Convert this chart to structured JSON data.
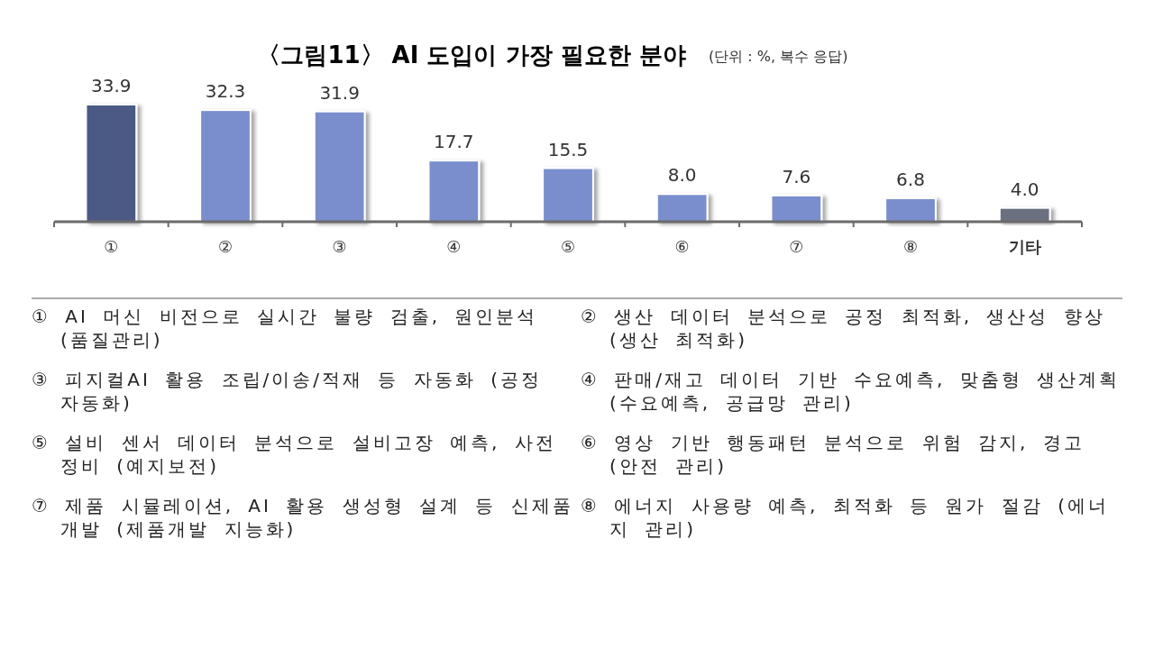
{
  "chart_data": {
    "type": "bar",
    "title": "〈그림11〉 AI 도입이 가장 필요한 분야",
    "subtitle": "(단위 : %, 복수 응답)",
    "categories": [
      "①",
      "②",
      "③",
      "④",
      "⑤",
      "⑥",
      "⑦",
      "⑧",
      "기타"
    ],
    "values": [
      33.9,
      32.3,
      31.9,
      17.7,
      15.5,
      8.0,
      7.6,
      6.8,
      4.0
    ],
    "value_labels": [
      "33.9",
      "32.3",
      "31.9",
      "17.7",
      "15.5",
      "8.0",
      "7.6",
      "6.8",
      "4.0"
    ],
    "colors": [
      "#4b5a84",
      "#7a8ecd",
      "#7a8ecd",
      "#7a8ecd",
      "#7a8ecd",
      "#7a8ecd",
      "#7a8ecd",
      "#7a8ecd",
      "#6a7080"
    ],
    "annotations": [
      "① AI 머신 비전으로 실시간 불량 검출, 원인분석 (품질관리)",
      "② 생산 데이터 분석으로 공정 최적화, 생산성 향상 (생산 최적화)",
      "③ 피지컬AI 활용 조립/이송/적재 등 자동화 (공정 자동화)",
      "④ 판매/재고 데이터 기반 수요예측, 맞춤형 생산계획 (수요예측, 공급망 관리)",
      "⑤ 설비 센서 데이터 분석으로 설비고장 예측, 사전정비 (예지보전)",
      "⑥ 영상 기반 행동패턴 분석으로 위험 감지, 경고 (안전 관리)",
      "⑦ 제품 시뮬레이션, AI 활용 생성형 설계 등 신제품개발 (제품개발 지능화)",
      "⑧ 에너지 사용량 예측, 최적화 등 원가 절감 (에너지 관리)"
    ]
  }
}
